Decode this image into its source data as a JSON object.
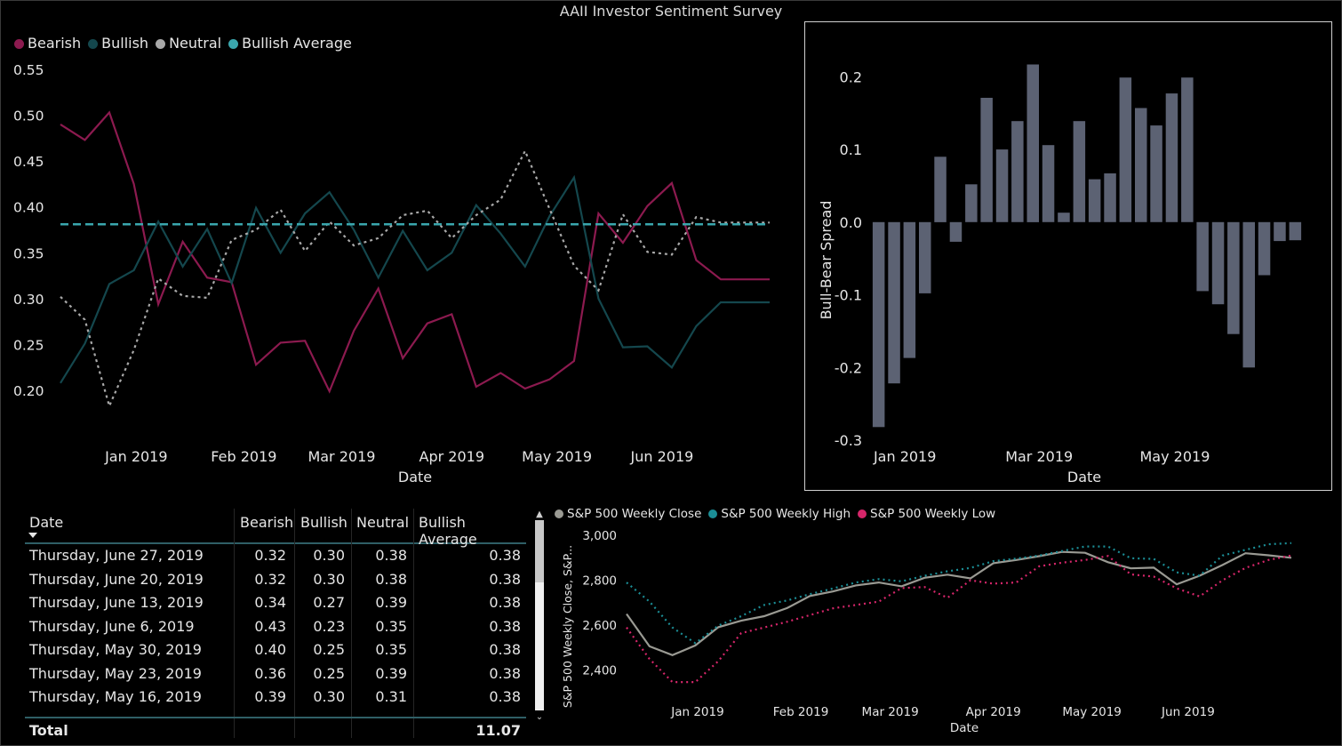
{
  "title": "AAII Investor Sentiment Survey",
  "colors": {
    "bearish": "#8c1a4f",
    "bullish": "#14474d",
    "neutral": "#a8a8a8",
    "bullish_average": "#3aa6ad",
    "bar": "#5c6273",
    "sp_close": "#9a9a93",
    "sp_high": "#1b8e96",
    "sp_low": "#d6266a"
  },
  "sentiment_legend": [
    {
      "label": "Bearish",
      "icon": "dot-icon",
      "color": "#8c1a4f"
    },
    {
      "label": "Bullish",
      "icon": "dot-icon",
      "color": "#14474d"
    },
    {
      "label": "Neutral",
      "icon": "dot-icon",
      "color": "#a8a8a8"
    },
    {
      "label": "Bullish Average",
      "icon": "dot-icon",
      "color": "#3aa6ad"
    }
  ],
  "sp_legend": [
    {
      "label": "S&P 500 Weekly Close",
      "icon": "dot-icon",
      "color": "#9a9a93"
    },
    {
      "label": "S&P 500 Weekly High",
      "icon": "dot-icon",
      "color": "#1b8e96"
    },
    {
      "label": "S&P 500 Weekly Low",
      "icon": "dot-icon",
      "color": "#d6266a"
    }
  ],
  "chart_data": [
    {
      "id": "sentiment",
      "type": "line",
      "title": "AAII Investor Sentiment Survey",
      "xlabel": "Date",
      "ylabel": "",
      "ylim": [
        0.17,
        0.55
      ],
      "yticks": [
        0.2,
        0.25,
        0.3,
        0.35,
        0.4,
        0.45,
        0.5,
        0.55
      ],
      "ytick_labels": [
        "0.20",
        "0.25",
        "0.30",
        "0.35",
        "0.40",
        "0.45",
        "0.50",
        "0.55"
      ],
      "xlim": [
        0,
        30
      ],
      "xticks": [
        {
          "x": 3.1,
          "label": "Jan 2019"
        },
        {
          "x": 7.5,
          "label": "Feb 2019"
        },
        {
          "x": 11.5,
          "label": "Mar 2019"
        },
        {
          "x": 16,
          "label": "Apr 2019"
        },
        {
          "x": 20.3,
          "label": "May 2019"
        },
        {
          "x": 24.6,
          "label": "Jun 2019"
        }
      ],
      "x": [
        0,
        1,
        2,
        3,
        4,
        5,
        6,
        7,
        8,
        9,
        10,
        11,
        12,
        13,
        14,
        15,
        16,
        17,
        18,
        19,
        20,
        21,
        22,
        23,
        24,
        25,
        26,
        27,
        28,
        29
      ],
      "series": [
        {
          "name": "Bearish",
          "style": "solid",
          "values": [
            0.49,
            0.473,
            0.503,
            0.425,
            0.294,
            0.362,
            0.323,
            0.318,
            0.228,
            0.252,
            0.254,
            0.199,
            0.265,
            0.311,
            0.235,
            0.273,
            0.283,
            0.204,
            0.219,
            0.202,
            0.212,
            0.232,
            0.393,
            0.361,
            0.401,
            0.426,
            0.342,
            0.321,
            0.321,
            0.321
          ]
        },
        {
          "name": "Bullish",
          "style": "solid",
          "values": [
            0.208,
            0.251,
            0.316,
            0.331,
            0.384,
            0.335,
            0.376,
            0.317,
            0.399,
            0.35,
            0.393,
            0.416,
            0.375,
            0.323,
            0.374,
            0.331,
            0.35,
            0.402,
            0.371,
            0.335,
            0.39,
            0.432,
            0.3,
            0.247,
            0.248,
            0.225,
            0.27,
            0.296,
            0.296,
            0.296
          ]
        },
        {
          "name": "Neutral",
          "style": "dotted",
          "values": [
            0.302,
            0.277,
            0.183,
            0.244,
            0.322,
            0.303,
            0.301,
            0.364,
            0.375,
            0.397,
            0.352,
            0.384,
            0.358,
            0.366,
            0.391,
            0.396,
            0.366,
            0.391,
            0.408,
            0.461,
            0.398,
            0.336,
            0.309,
            0.392,
            0.351,
            0.348,
            0.389,
            0.383,
            0.383,
            0.383
          ]
        },
        {
          "name": "Bullish Average",
          "style": "dashed",
          "values": [
            0.381,
            0.381,
            0.381,
            0.381,
            0.381,
            0.381,
            0.381,
            0.381,
            0.381,
            0.381,
            0.381,
            0.381,
            0.381,
            0.381,
            0.381,
            0.381,
            0.381,
            0.381,
            0.381,
            0.381,
            0.381,
            0.381,
            0.381,
            0.381,
            0.381,
            0.381,
            0.381,
            0.381,
            0.381,
            0.381
          ]
        }
      ]
    },
    {
      "id": "spread",
      "type": "bar",
      "xlabel": "Date",
      "ylabel": "Bull-Bear Spread",
      "ylim": [
        -0.3,
        0.22
      ],
      "yticks": [
        -0.3,
        -0.2,
        -0.1,
        0.0,
        0.1,
        0.2
      ],
      "ytick_labels": [
        "-0.3",
        "-0.2",
        "-0.1",
        "0.0",
        "0.1",
        "0.2"
      ],
      "xticks": [
        {
          "x": 2.2,
          "label": "Jan 2019"
        },
        {
          "x": 10.9,
          "label": "Mar 2019"
        },
        {
          "x": 19.7,
          "label": "May 2019"
        }
      ],
      "values": [
        -0.282,
        -0.222,
        -0.187,
        -0.098,
        0.09,
        -0.027,
        0.052,
        0.171,
        0.1,
        0.139,
        0.217,
        0.106,
        0.013,
        0.139,
        0.059,
        0.067,
        0.199,
        0.157,
        0.133,
        0.177,
        0.199,
        -0.095,
        -0.113,
        -0.154,
        -0.2,
        -0.073,
        -0.026,
        -0.025
      ]
    },
    {
      "id": "sp500",
      "type": "line",
      "xlabel": "Date",
      "ylabel": "S&P 500 Weekly Close, S&P...",
      "ylim": [
        2300,
        3000
      ],
      "yticks": [
        2400,
        2600,
        2800,
        3000
      ],
      "ytick_labels": [
        "2,400",
        "2,600",
        "2,800",
        "3,000"
      ],
      "xticks": [
        {
          "x": 3.1,
          "label": "Jan 2019"
        },
        {
          "x": 7.6,
          "label": "Feb 2019"
        },
        {
          "x": 11.5,
          "label": "Mar 2019"
        },
        {
          "x": 16,
          "label": "Apr 2019"
        },
        {
          "x": 20.3,
          "label": "May 2019"
        },
        {
          "x": 24.5,
          "label": "Jun 2019"
        }
      ],
      "x": [
        0,
        1,
        2,
        3,
        4,
        5,
        6,
        7,
        8,
        9,
        10,
        11,
        12,
        13,
        14,
        15,
        16,
        17,
        18,
        19,
        20,
        21,
        22,
        23,
        24,
        25,
        26,
        27,
        28,
        29
      ],
      "series": [
        {
          "name": "S&P 500 Weekly Close",
          "style": "solid",
          "values": [
            2650,
            2506,
            2467,
            2510,
            2591,
            2620,
            2640,
            2676,
            2730,
            2750,
            2777,
            2790,
            2773,
            2811,
            2825,
            2808,
            2876,
            2890,
            2907,
            2926,
            2922,
            2880,
            2853,
            2856,
            2782,
            2820,
            2868,
            2920,
            2911,
            2900
          ]
        },
        {
          "name": "S&P 500 Weekly High",
          "style": "dotted",
          "values": [
            2790,
            2705,
            2590,
            2520,
            2598,
            2640,
            2690,
            2710,
            2738,
            2763,
            2790,
            2805,
            2795,
            2820,
            2840,
            2855,
            2885,
            2896,
            2910,
            2930,
            2950,
            2950,
            2898,
            2895,
            2835,
            2820,
            2910,
            2935,
            2960,
            2965
          ]
        },
        {
          "name": "S&P 500 Weekly Low",
          "style": "dotted",
          "values": [
            2590,
            2450,
            2347,
            2347,
            2440,
            2565,
            2590,
            2615,
            2645,
            2675,
            2690,
            2705,
            2765,
            2770,
            2722,
            2800,
            2785,
            2790,
            2862,
            2878,
            2890,
            2908,
            2826,
            2816,
            2764,
            2728,
            2800,
            2855,
            2890,
            2910
          ]
        }
      ]
    }
  ],
  "table": {
    "columns": [
      "Date",
      "Bearish",
      "Bullish",
      "Neutral",
      "Bullish Average"
    ],
    "rows": [
      [
        "Thursday, June 27, 2019",
        "0.32",
        "0.30",
        "0.38",
        "0.38"
      ],
      [
        "Thursday, June 20, 2019",
        "0.32",
        "0.30",
        "0.38",
        "0.38"
      ],
      [
        "Thursday, June 13, 2019",
        "0.34",
        "0.27",
        "0.39",
        "0.38"
      ],
      [
        "Thursday, June 6, 2019",
        "0.43",
        "0.23",
        "0.35",
        "0.38"
      ],
      [
        "Thursday, May 30, 2019",
        "0.40",
        "0.25",
        "0.35",
        "0.38"
      ],
      [
        "Thursday, May 23, 2019",
        "0.36",
        "0.25",
        "0.39",
        "0.38"
      ],
      [
        "Thursday, May 16, 2019",
        "0.39",
        "0.30",
        "0.31",
        "0.38"
      ]
    ],
    "total_label": "Total",
    "total_value": "11.07"
  }
}
